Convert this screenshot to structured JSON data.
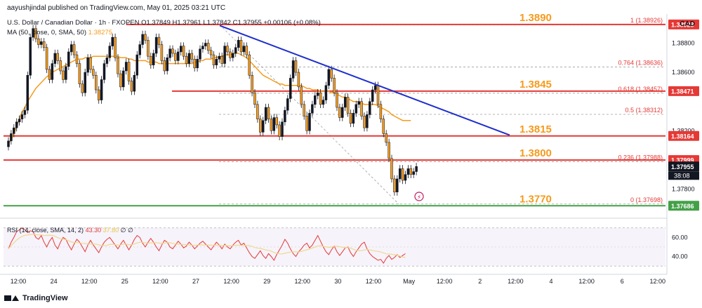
{
  "header": {
    "publisher": "aayushjindal published on TradingView.com, May 01, 2025 03:21 UTC",
    "symbol_line": "U.S. Dollar / Canadian Dollar · 1h · FXOPEN  O1.37849  H1.37961  L1.37842  C1.37955  +0.00106 (+0.08%)",
    "ma_label": "MA (50, close, 0, SMA, 50)",
    "ma_value": "1.38275",
    "currency": "CAD"
  },
  "rsi_legend": {
    "label": "RSI (14, close, SMA, 14, 2)",
    "value": "43.30",
    "sma_value": "37.80",
    "extra": "∅  ∅"
  },
  "footer": {
    "brand": "TradingView"
  },
  "chart_data": {
    "type": "candlestick",
    "ylim": [
      1.3762,
      1.3898
    ],
    "price_axis_labels": [
      "1.38800",
      "1.38600",
      "1.38200",
      "1.37800"
    ],
    "price_badges": [
      {
        "text": "1.38928",
        "price": 1.38928,
        "color": "#e53935"
      },
      {
        "text": "1.38471",
        "price": 1.38471,
        "color": "#e53935"
      },
      {
        "text": "1.38164",
        "price": 1.38164,
        "color": "#e53935"
      },
      {
        "text": "1.37999",
        "price": 1.37999,
        "color": "#e53935"
      },
      {
        "text": "1.37955",
        "price": 1.37955,
        "color": "#131722"
      },
      {
        "text": "1.37686",
        "price": 1.37686,
        "color": "#43a047"
      }
    ],
    "countdown": "38:08",
    "x_labels": [
      "12:00",
      "24",
      "12:00",
      "25",
      "12:00",
      "27",
      "12:00",
      "29",
      "12:00",
      "30",
      "12:00",
      "May",
      "12:00",
      "2",
      "12:00",
      "4",
      "12:00",
      "6",
      "12:00"
    ],
    "levels": [
      {
        "label": "1.3890",
        "price": 1.38928,
        "color": "#e53935"
      },
      {
        "label": "1.3845",
        "price": 1.38471,
        "color": "#e53935"
      },
      {
        "label": "1.3815",
        "price": 1.38164,
        "color": "#e53935"
      },
      {
        "label": "1.3800",
        "price": 1.37999,
        "color": "#e53935"
      },
      {
        "label": "1.3770",
        "price": 1.37686,
        "color": "#43a047"
      }
    ],
    "fib_levels": [
      {
        "label": "1 (1.38926)",
        "price": 1.38926
      },
      {
        "label": "0.764 (1.38636)",
        "price": 1.38636
      },
      {
        "label": "0.618 (1.38457)",
        "price": 1.38457
      },
      {
        "label": "0.5 (1.38312)",
        "price": 1.38312
      },
      {
        "label": "0.236 (1.37988)",
        "price": 1.37988
      },
      {
        "label": "0 (1.37698)",
        "price": 1.37698
      }
    ],
    "trendline": {
      "from_price": 1.3892,
      "to_price": 1.3817,
      "color": "#1e2ecc"
    },
    "close_series": [
      1.3813,
      1.3818,
      1.3822,
      1.3826,
      1.3828,
      1.3831,
      1.3834,
      1.3858,
      1.3884,
      1.389,
      1.3883,
      1.3879,
      1.3881,
      1.3877,
      1.3862,
      1.3855,
      1.3866,
      1.3873,
      1.3868,
      1.3861,
      1.3855,
      1.3864,
      1.3874,
      1.3879,
      1.3872,
      1.3866,
      1.3852,
      1.3846,
      1.386,
      1.387,
      1.3862,
      1.3858,
      1.3848,
      1.3841,
      1.3855,
      1.3866,
      1.387,
      1.3878,
      1.3884,
      1.387,
      1.3859,
      1.385,
      1.3861,
      1.3867,
      1.3854,
      1.3847,
      1.3858,
      1.3872,
      1.3879,
      1.3886,
      1.3882,
      1.3871,
      1.3865,
      1.3873,
      1.3884,
      1.3879,
      1.3868,
      1.3861,
      1.387,
      1.3876,
      1.3873,
      1.3868,
      1.3874,
      1.3878,
      1.3871,
      1.3866,
      1.3873,
      1.3869,
      1.3863,
      1.3869,
      1.3876,
      1.3878,
      1.388,
      1.3875,
      1.3872,
      1.3865,
      1.3869,
      1.3871,
      1.3866,
      1.3878,
      1.3874,
      1.387,
      1.3873,
      1.3877,
      1.3882,
      1.3874,
      1.3878,
      1.3872,
      1.3858,
      1.3846,
      1.3838,
      1.3828,
      1.3819,
      1.3827,
      1.3836,
      1.3828,
      1.382,
      1.3829,
      1.3824,
      1.3816,
      1.3826,
      1.3834,
      1.3842,
      1.3856,
      1.3868,
      1.386,
      1.385,
      1.3838,
      1.383,
      1.382,
      1.3832,
      1.3838,
      1.3844,
      1.3846,
      1.3838,
      1.3841,
      1.3851,
      1.3862,
      1.3856,
      1.3846,
      1.3836,
      1.3829,
      1.3836,
      1.3843,
      1.3832,
      1.3825,
      1.3832,
      1.3838,
      1.384,
      1.383,
      1.3822,
      1.3831,
      1.384,
      1.3848,
      1.3851,
      1.3838,
      1.3828,
      1.3818,
      1.3812,
      1.3801,
      1.3787,
      1.3778,
      1.3787,
      1.3794,
      1.3786,
      1.379,
      1.3794,
      1.379,
      1.3792,
      1.37955
    ],
    "ma_series": [
      1.3811,
      1.3814,
      1.3818,
      1.3823,
      1.3828,
      1.3833,
      1.3836,
      1.384,
      1.3843,
      1.3846,
      1.3849,
      1.3851,
      1.3853,
      1.3855,
      1.3857,
      1.3858,
      1.386,
      1.3861,
      1.3862,
      1.3863,
      1.3864,
      1.3865,
      1.3866,
      1.3867,
      1.3868,
      1.3869,
      1.3869,
      1.3869,
      1.387,
      1.387,
      1.387,
      1.3871,
      1.3871,
      1.3871,
      1.3871,
      1.3871,
      1.3871,
      1.3871,
      1.3871,
      1.3871,
      1.3871,
      1.387,
      1.387,
      1.387,
      1.3869,
      1.3869,
      1.3868,
      1.3868,
      1.3868,
      1.3868,
      1.3868,
      1.3867,
      1.3867,
      1.3867,
      1.3867,
      1.3866,
      1.3866,
      1.3866,
      1.3866,
      1.3866,
      1.3866,
      1.3866,
      1.3866,
      1.3866,
      1.3866,
      1.3866,
      1.3866,
      1.3866,
      1.3867,
      1.3867,
      1.3868,
      1.3868,
      1.3869,
      1.3869,
      1.3869,
      1.387,
      1.387,
      1.3871,
      1.3871,
      1.3872,
      1.3872,
      1.3872,
      1.3873,
      1.3873,
      1.3873,
      1.3872,
      1.3871,
      1.387,
      1.3868,
      1.3866,
      1.3864,
      1.3862,
      1.386,
      1.3858,
      1.3857,
      1.3856,
      1.3855,
      1.3854,
      1.3853,
      1.3852,
      1.3852,
      1.3851,
      1.3851,
      1.3851,
      1.3851,
      1.3851,
      1.3851,
      1.3851,
      1.385,
      1.3849,
      1.3849,
      1.3848,
      1.3848,
      1.3848,
      1.3847,
      1.3847,
      1.3847,
      1.3847,
      1.3846,
      1.3846,
      1.3845,
      1.3844,
      1.3843,
      1.3843,
      1.3842,
      1.3841,
      1.384,
      1.384,
      1.384,
      1.3839,
      1.3838,
      1.3838,
      1.3838,
      1.3838,
      1.3838,
      1.3837,
      1.3836,
      1.3835,
      1.3834,
      1.3833,
      1.3831,
      1.383,
      1.3829,
      1.3828,
      1.3827,
      1.3827,
      1.3827,
      1.3827
    ],
    "rsi_axis_labels": [
      "60.00",
      "40.00"
    ],
    "rsi": [
      48,
      55,
      60,
      66,
      68,
      70,
      68,
      65,
      67,
      66,
      60,
      58,
      62,
      55,
      50,
      56,
      60,
      52,
      48,
      55,
      60,
      58,
      52,
      47,
      53,
      58,
      55,
      50,
      45,
      52,
      57,
      52,
      48,
      44,
      50,
      55,
      58,
      60,
      56,
      52,
      48,
      53,
      57,
      52,
      47,
      52,
      58,
      62,
      60,
      54,
      50,
      55,
      59,
      55,
      50,
      46,
      52,
      57,
      55,
      50,
      48,
      52,
      56,
      53,
      49,
      51,
      55,
      52,
      48,
      51,
      54,
      56,
      53,
      50,
      47,
      51,
      55,
      52,
      48,
      53,
      50,
      48,
      52,
      55,
      57,
      52,
      54,
      49,
      44,
      40,
      38,
      42,
      46,
      41,
      38,
      43,
      40,
      36,
      42,
      47,
      52,
      58,
      54,
      48,
      43,
      40,
      45,
      48,
      52,
      54,
      49,
      52,
      57,
      62,
      56,
      50,
      45,
      42,
      47,
      51,
      45,
      41,
      45,
      49,
      50,
      44,
      40,
      45,
      49,
      53,
      55,
      48,
      43,
      40,
      38,
      36,
      37,
      33,
      38,
      41,
      37,
      39,
      42,
      39,
      41,
      43
    ]
  }
}
